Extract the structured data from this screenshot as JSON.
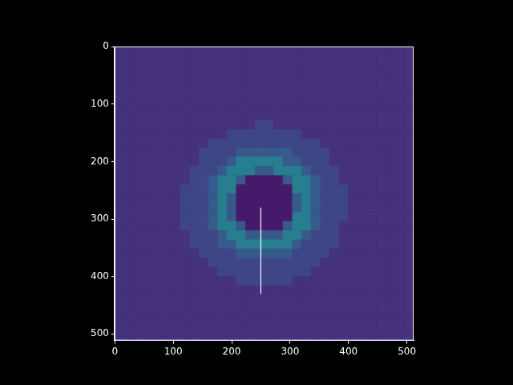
{
  "chart_data": {
    "type": "heatmap",
    "xlim": [
      -0.5,
      511.5
    ],
    "ylim": [
      511.5,
      -0.5
    ],
    "xticks": [
      0,
      100,
      200,
      300,
      400,
      500
    ],
    "yticks": [
      0,
      100,
      200,
      300,
      400,
      500
    ],
    "grid": false,
    "crange": [
      0,
      14
    ],
    "cells": [
      [
        2,
        2,
        2,
        2,
        2,
        2,
        2,
        2,
        2,
        2,
        2,
        2,
        2,
        2,
        2,
        2,
        2,
        2,
        2,
        2,
        2,
        2,
        2,
        2,
        2,
        2,
        2,
        2,
        2,
        2,
        2,
        2
      ],
      [
        2,
        2,
        2,
        2,
        2,
        2,
        2,
        2,
        2,
        2,
        2,
        2,
        2,
        2,
        2,
        2,
        2,
        2,
        2,
        2,
        2,
        2,
        2,
        2,
        2,
        2,
        2,
        2,
        2,
        2,
        2,
        2
      ],
      [
        2,
        2,
        2,
        2,
        2,
        2,
        2,
        2,
        2,
        2,
        2,
        2,
        2,
        2,
        2,
        2,
        2,
        2,
        2,
        2,
        2,
        2,
        2,
        2,
        2,
        2,
        2,
        2,
        2,
        2,
        2,
        2
      ],
      [
        2,
        2,
        2,
        2,
        2,
        2,
        2,
        2,
        2,
        2,
        2,
        2,
        2,
        2,
        2,
        2,
        2,
        2,
        2,
        2,
        2,
        2,
        2,
        2,
        2,
        2,
        2,
        2,
        2,
        2,
        2,
        2
      ],
      [
        2,
        2,
        2,
        2,
        2,
        2,
        2,
        2,
        2,
        2,
        2,
        2,
        2,
        2,
        2,
        2,
        2,
        2,
        2,
        2,
        2,
        2,
        2,
        2,
        2,
        2,
        2,
        2,
        2,
        2,
        2,
        2
      ],
      [
        2,
        2,
        2,
        2,
        2,
        2,
        2,
        2,
        2,
        2,
        2,
        2,
        2,
        2,
        2,
        2,
        2,
        2,
        2,
        2,
        2,
        2,
        2,
        2,
        2,
        2,
        2,
        2,
        2,
        2,
        2,
        2
      ],
      [
        2,
        2,
        2,
        2,
        2,
        2,
        2,
        2,
        2,
        2,
        2,
        2,
        2,
        2,
        2,
        2,
        2,
        2,
        2,
        2,
        2,
        2,
        2,
        2,
        2,
        2,
        2,
        2,
        2,
        2,
        2,
        2
      ],
      [
        2,
        2,
        2,
        2,
        2,
        2,
        2,
        2,
        2,
        2,
        2,
        2,
        2,
        2,
        2,
        2,
        2,
        2,
        2,
        2,
        2,
        2,
        2,
        2,
        2,
        2,
        2,
        2,
        2,
        2,
        2,
        2
      ],
      [
        2,
        2,
        2,
        2,
        2,
        2,
        2,
        2,
        2,
        2,
        2,
        2,
        2,
        2,
        2,
        3,
        3,
        2,
        2,
        2,
        2,
        2,
        2,
        2,
        2,
        2,
        2,
        2,
        2,
        2,
        2,
        2
      ],
      [
        2,
        2,
        2,
        2,
        2,
        2,
        2,
        2,
        2,
        2,
        2,
        2,
        3,
        3,
        3,
        3,
        3,
        3,
        3,
        3,
        2,
        2,
        2,
        2,
        2,
        2,
        2,
        2,
        2,
        2,
        2,
        2
      ],
      [
        2,
        2,
        2,
        2,
        2,
        2,
        2,
        2,
        2,
        2,
        3,
        3,
        3,
        3,
        3,
        3,
        3,
        3,
        3,
        3,
        3,
        3,
        2,
        2,
        2,
        2,
        2,
        2,
        2,
        2,
        2,
        2
      ],
      [
        2,
        2,
        2,
        2,
        2,
        2,
        2,
        2,
        2,
        3,
        3,
        3,
        3,
        4,
        4,
        4,
        4,
        4,
        4,
        3,
        3,
        3,
        3,
        2,
        2,
        2,
        2,
        2,
        2,
        2,
        2,
        2
      ],
      [
        2,
        2,
        2,
        2,
        2,
        2,
        2,
        2,
        2,
        3,
        3,
        3,
        4,
        6,
        6,
        6,
        6,
        6,
        4,
        4,
        3,
        3,
        3,
        2,
        2,
        2,
        2,
        2,
        2,
        2,
        2,
        2
      ],
      [
        2,
        2,
        2,
        2,
        2,
        2,
        2,
        2,
        3,
        3,
        3,
        4,
        6,
        6,
        6,
        4,
        4,
        6,
        6,
        6,
        4,
        3,
        3,
        3,
        2,
        2,
        2,
        2,
        2,
        2,
        2,
        2
      ],
      [
        2,
        2,
        2,
        2,
        2,
        2,
        2,
        2,
        3,
        3,
        4,
        6,
        6,
        4,
        1,
        1,
        1,
        1,
        4,
        6,
        6,
        4,
        3,
        3,
        2,
        2,
        2,
        2,
        2,
        2,
        2,
        2
      ],
      [
        2,
        2,
        2,
        2,
        2,
        2,
        2,
        3,
        3,
        3,
        4,
        6,
        6,
        1,
        1,
        1,
        1,
        1,
        1,
        6,
        6,
        4,
        3,
        3,
        3,
        2,
        2,
        2,
        2,
        2,
        2,
        2
      ],
      [
        2,
        2,
        2,
        2,
        2,
        2,
        2,
        3,
        3,
        3,
        4,
        6,
        4,
        1,
        1,
        1,
        1,
        1,
        1,
        4,
        6,
        4,
        3,
        3,
        3,
        2,
        2,
        2,
        2,
        2,
        2,
        2
      ],
      [
        2,
        2,
        2,
        2,
        2,
        2,
        2,
        3,
        3,
        3,
        4,
        6,
        4,
        1,
        1,
        1,
        1,
        1,
        1,
        4,
        6,
        4,
        3,
        3,
        3,
        2,
        2,
        2,
        2,
        2,
        2,
        2
      ],
      [
        2,
        2,
        2,
        2,
        2,
        2,
        2,
        3,
        3,
        3,
        4,
        6,
        4,
        1,
        1,
        1,
        1,
        1,
        1,
        6,
        6,
        4,
        3,
        3,
        3,
        2,
        2,
        2,
        2,
        2,
        2,
        2
      ],
      [
        2,
        2,
        2,
        2,
        2,
        2,
        2,
        3,
        3,
        3,
        4,
        6,
        6,
        4,
        1,
        1,
        1,
        1,
        4,
        6,
        6,
        4,
        3,
        3,
        2,
        2,
        2,
        2,
        2,
        2,
        2,
        2
      ],
      [
        2,
        2,
        2,
        2,
        2,
        2,
        2,
        2,
        3,
        3,
        3,
        4,
        6,
        6,
        4,
        4,
        4,
        4,
        6,
        6,
        4,
        3,
        3,
        3,
        2,
        2,
        2,
        2,
        2,
        2,
        2,
        2
      ],
      [
        2,
        2,
        2,
        2,
        2,
        2,
        2,
        2,
        3,
        3,
        3,
        4,
        4,
        6,
        6,
        6,
        6,
        6,
        6,
        4,
        3,
        3,
        3,
        3,
        2,
        2,
        2,
        2,
        2,
        2,
        2,
        2
      ],
      [
        2,
        2,
        2,
        2,
        2,
        2,
        2,
        2,
        2,
        3,
        3,
        3,
        3,
        4,
        4,
        4,
        4,
        4,
        4,
        3,
        3,
        3,
        3,
        2,
        2,
        2,
        2,
        2,
        2,
        2,
        2,
        2
      ],
      [
        2,
        2,
        2,
        2,
        2,
        2,
        2,
        2,
        2,
        2,
        3,
        3,
        3,
        3,
        3,
        3,
        3,
        3,
        3,
        3,
        3,
        3,
        2,
        2,
        2,
        2,
        2,
        2,
        2,
        2,
        2,
        2
      ],
      [
        2,
        2,
        2,
        2,
        2,
        2,
        2,
        2,
        2,
        2,
        2,
        3,
        3,
        3,
        3,
        3,
        3,
        3,
        3,
        3,
        3,
        2,
        2,
        2,
        2,
        2,
        2,
        2,
        2,
        2,
        2,
        2
      ],
      [
        2,
        2,
        2,
        2,
        2,
        2,
        2,
        2,
        2,
        2,
        2,
        2,
        2,
        3,
        3,
        3,
        3,
        3,
        3,
        2,
        2,
        2,
        2,
        2,
        2,
        2,
        2,
        2,
        2,
        2,
        2,
        2
      ],
      [
        2,
        2,
        2,
        2,
        2,
        2,
        2,
        2,
        2,
        2,
        2,
        2,
        2,
        2,
        2,
        2,
        2,
        2,
        2,
        2,
        2,
        2,
        2,
        2,
        2,
        2,
        2,
        2,
        2,
        2,
        2,
        2
      ],
      [
        2,
        2,
        2,
        2,
        2,
        2,
        2,
        2,
        2,
        2,
        2,
        2,
        2,
        2,
        2,
        2,
        2,
        2,
        2,
        2,
        2,
        2,
        2,
        2,
        2,
        2,
        2,
        2,
        2,
        2,
        2,
        2
      ],
      [
        2,
        2,
        2,
        2,
        2,
        2,
        2,
        2,
        2,
        2,
        2,
        2,
        2,
        2,
        2,
        2,
        2,
        2,
        2,
        2,
        2,
        2,
        2,
        2,
        2,
        2,
        2,
        2,
        2,
        2,
        2,
        2
      ],
      [
        2,
        2,
        2,
        2,
        2,
        2,
        2,
        2,
        2,
        2,
        2,
        2,
        2,
        2,
        2,
        2,
        2,
        2,
        2,
        2,
        2,
        2,
        2,
        2,
        2,
        2,
        2,
        2,
        2,
        2,
        2,
        2
      ],
      [
        2,
        2,
        2,
        2,
        2,
        2,
        2,
        2,
        2,
        2,
        2,
        2,
        2,
        2,
        2,
        2,
        2,
        2,
        2,
        2,
        2,
        2,
        2,
        2,
        2,
        2,
        2,
        2,
        2,
        2,
        2,
        2
      ],
      [
        2,
        2,
        2,
        2,
        2,
        2,
        2,
        2,
        2,
        2,
        2,
        2,
        2,
        2,
        2,
        2,
        2,
        2,
        2,
        2,
        2,
        2,
        2,
        2,
        2,
        2,
        2,
        2,
        2,
        2,
        2,
        2
      ]
    ],
    "lines": [
      {
        "x": [
          250,
          250
        ],
        "y": [
          280,
          430
        ],
        "color": "#ffffff"
      }
    ]
  }
}
